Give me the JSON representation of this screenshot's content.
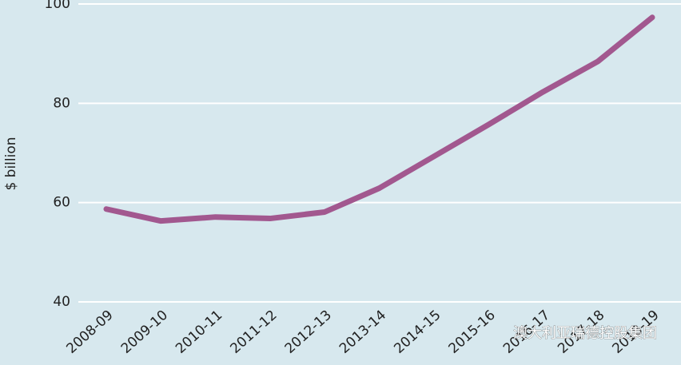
{
  "chart_data": {
    "type": "line",
    "y_label": "$ billion",
    "categories": [
      "2008-09",
      "2009-10",
      "2010-11",
      "2011-12",
      "2012-13",
      "2013-14",
      "2014-15",
      "2015-16",
      "2016-17",
      "2017-18",
      "2018-19"
    ],
    "series": [
      {
        "name": null,
        "color": "#a2588f",
        "values": [
          58.7,
          56.3,
          57.1,
          56.8,
          58.1,
          62.9,
          69.3,
          75.7,
          82.3,
          88.4,
          97.3
        ]
      }
    ],
    "ylim": [
      40,
      100
    ],
    "yticks": [
      40,
      60,
      80,
      100
    ],
    "grid": true,
    "watermark": "澳大利亚瑞德控股集团"
  }
}
